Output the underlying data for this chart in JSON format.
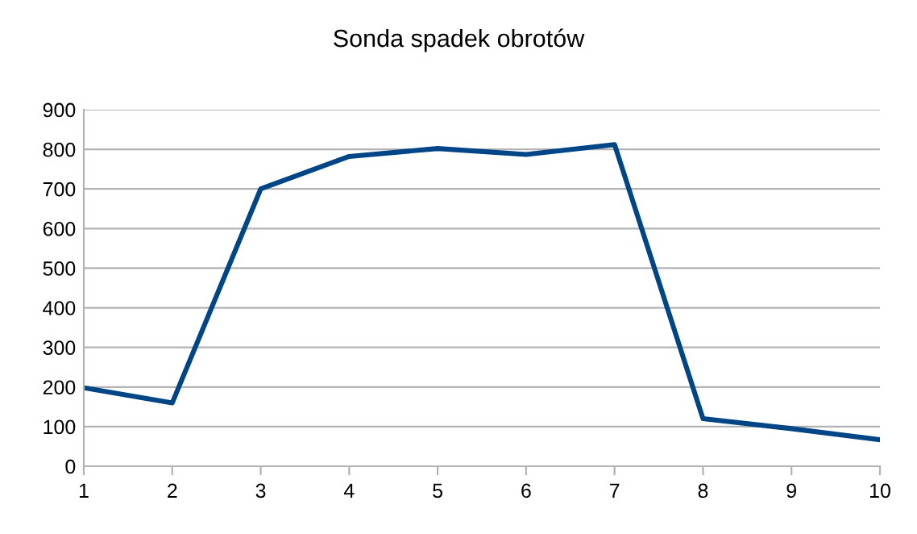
{
  "chart_data": {
    "type": "line",
    "title": "Sonda spadek obrotów",
    "x": [
      1,
      2,
      3,
      4,
      5,
      6,
      7,
      8,
      9,
      10
    ],
    "series": [
      {
        "color": "#004586",
        "values": [
          198,
          160,
          700,
          782,
          802,
          787,
          812,
          120,
          95,
          67
        ]
      }
    ],
    "xlim": [
      1,
      10
    ],
    "xticks": [
      1,
      2,
      3,
      4,
      5,
      6,
      7,
      8,
      9,
      10
    ],
    "ylim": [
      0,
      900
    ],
    "yticks": [
      0,
      100,
      200,
      300,
      400,
      500,
      600,
      700,
      800,
      900
    ],
    "grid": "y",
    "legend": false,
    "marker": "none",
    "line_style": "solid"
  }
}
